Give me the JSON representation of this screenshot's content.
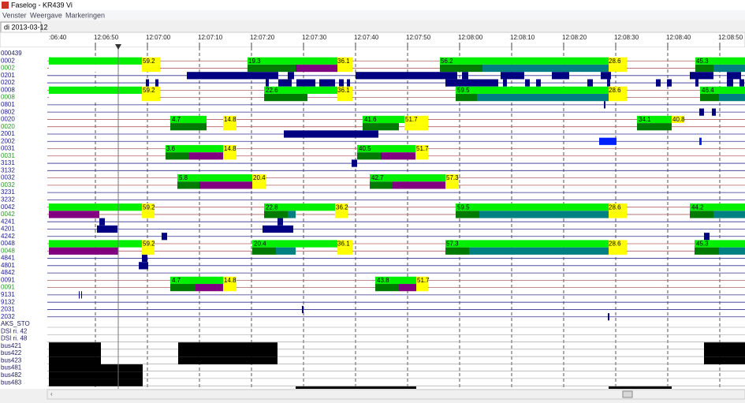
{
  "window": {
    "title": "Faselog - KR439 Vi"
  },
  "menu": [
    "Venster",
    "Weergave",
    "Markeringen"
  ],
  "tab": "di 2013-03-12",
  "time_axis": [
    ":06:40",
    "12:06:50",
    "12:07:00",
    "12:07:10",
    "12:07:20",
    "12:07:30",
    "12:07:40",
    "12:07:50",
    "12:08:00",
    "12:08:10",
    "12:08:20",
    "12:08:30",
    "12:08:40",
    "12:08:50"
  ],
  "rows": [
    "000439",
    "0002",
    "0002",
    "0201",
    "0202",
    "0008",
    "0008",
    "0801",
    "0802",
    "0020",
    "0020",
    "2001",
    "2002",
    "0031",
    "0031",
    "3131",
    "3132",
    "0032",
    "0032",
    "3231",
    "3232",
    "0042",
    "0042",
    "4241",
    "4201",
    "4242",
    "0048",
    "0048",
    "4841",
    "4801",
    "4842",
    "0091",
    "0091",
    "9131",
    "9132",
    "2031",
    "2032",
    "AKS_STO",
    "DSI ri. 42",
    "DSI ri. 48",
    "bus421",
    "bus422",
    "bus423",
    "bus481",
    "bus482",
    "bus483"
  ],
  "bar_labels": [
    [
      59.2,
      19.3,
      36.1,
      56.2,
      28.6,
      45.3
    ],
    [
      59.2,
      22.6,
      36.1,
      59.5,
      28.6,
      46.4
    ],
    [
      4.7,
      14.8,
      41.6,
      51.7,
      34.1,
      40.8
    ],
    [
      3.6,
      14.8,
      40.5,
      51.7
    ],
    [
      5.8,
      20.4,
      42.7,
      57.3
    ],
    [
      59.2,
      22.8,
      36.2,
      59.5,
      28.6,
      44.2
    ],
    [
      59.2,
      20.4,
      36.1,
      57.3,
      28.6,
      45.3
    ],
    [
      4.7,
      14.8,
      43.8,
      51.7
    ]
  ]
}
